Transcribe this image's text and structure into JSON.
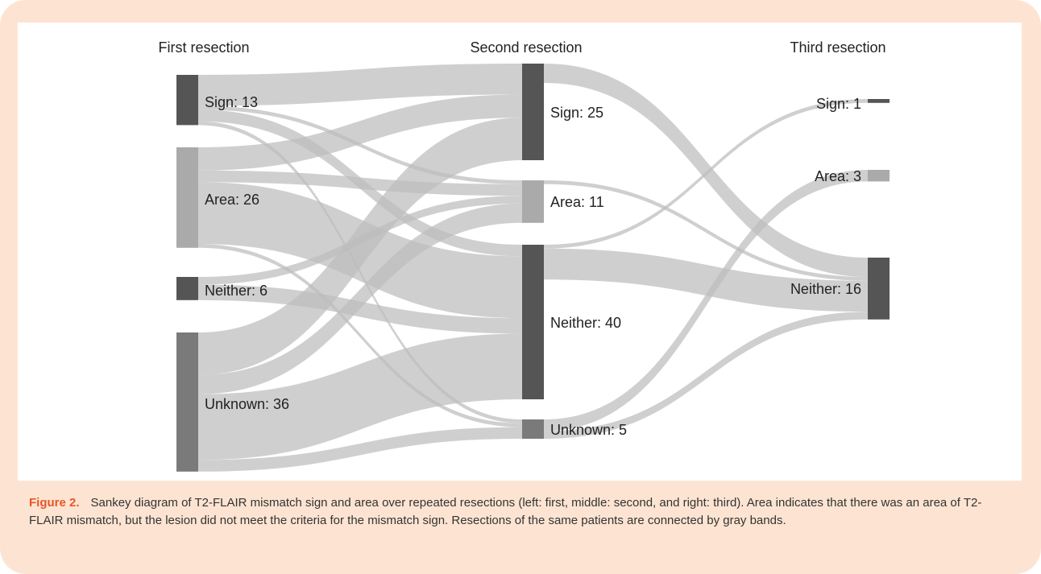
{
  "chart_data": {
    "type": "sankey",
    "link_color": "#bdbdbd",
    "columns": [
      {
        "title": "First resection",
        "nodes": [
          {
            "label": "Sign: 13",
            "value": 13,
            "color": "#555555"
          },
          {
            "label": "Area: 26",
            "value": 26,
            "color": "#aaaaaa"
          },
          {
            "label": "Neither: 6",
            "value": 6,
            "color": "#555555"
          },
          {
            "label": "Unknown: 36",
            "value": 36,
            "color": "#7a7a7a"
          }
        ]
      },
      {
        "title": "Second resection",
        "nodes": [
          {
            "label": "Sign: 25",
            "value": 25,
            "color": "#555555"
          },
          {
            "label": "Area: 11",
            "value": 11,
            "color": "#aaaaaa"
          },
          {
            "label": "Neither: 40",
            "value": 40,
            "color": "#555555"
          },
          {
            "label": "Unknown: 5",
            "value": 5,
            "color": "#7a7a7a"
          }
        ]
      },
      {
        "title": "Third resection",
        "nodes": [
          {
            "label": "Sign: 1",
            "value": 1,
            "color": "#555555"
          },
          {
            "label": "Area: 3",
            "value": 3,
            "color": "#aaaaaa"
          },
          {
            "label": "Neither: 16",
            "value": 16,
            "color": "#555555"
          }
        ]
      }
    ],
    "links": [
      {
        "source": "Sign: 13",
        "target": "Sign: 25",
        "value": 8
      },
      {
        "source": "Sign: 13",
        "target": "Area: 11",
        "value": 1
      },
      {
        "source": "Sign: 13",
        "target": "Neither: 40",
        "value": 3
      },
      {
        "source": "Sign: 13",
        "target": "Unknown: 5",
        "value": 1
      },
      {
        "source": "Area: 26",
        "target": "Sign: 25",
        "value": 6
      },
      {
        "source": "Area: 26",
        "target": "Area: 11",
        "value": 3
      },
      {
        "source": "Area: 26",
        "target": "Neither: 40",
        "value": 16
      },
      {
        "source": "Area: 26",
        "target": "Unknown: 5",
        "value": 1
      },
      {
        "source": "Neither: 6",
        "target": "Area: 11",
        "value": 2
      },
      {
        "source": "Neither: 6",
        "target": "Neither: 40",
        "value": 4
      },
      {
        "source": "Unknown: 36",
        "target": "Sign: 25",
        "value": 11
      },
      {
        "source": "Unknown: 36",
        "target": "Area: 11",
        "value": 5
      },
      {
        "source": "Unknown: 36",
        "target": "Neither: 40",
        "value": 17
      },
      {
        "source": "Unknown: 36",
        "target": "Unknown: 5",
        "value": 3
      },
      {
        "source": "Sign: 25",
        "target": "Neither: 16",
        "value": 5
      },
      {
        "source": "Area: 11",
        "target": "Neither: 16",
        "value": 1
      },
      {
        "source": "Neither: 40",
        "target": "Sign: 1",
        "value": 1
      },
      {
        "source": "Neither: 40",
        "target": "Neither: 16",
        "value": 8
      },
      {
        "source": "Unknown: 5",
        "target": "Area: 3",
        "value": 3
      },
      {
        "source": "Unknown: 5",
        "target": "Neither: 16",
        "value": 2
      }
    ]
  },
  "caption": {
    "label": "Figure 2.",
    "text": "Sankey diagram of T2-FLAIR mismatch sign and area over repeated resections (left: first, middle: second, and right: third). Area indicates that there was an area of T2-FLAIR mismatch, but the lesion did not meet the criteria for the mismatch sign. Resections of the same patients are connected by gray bands."
  }
}
